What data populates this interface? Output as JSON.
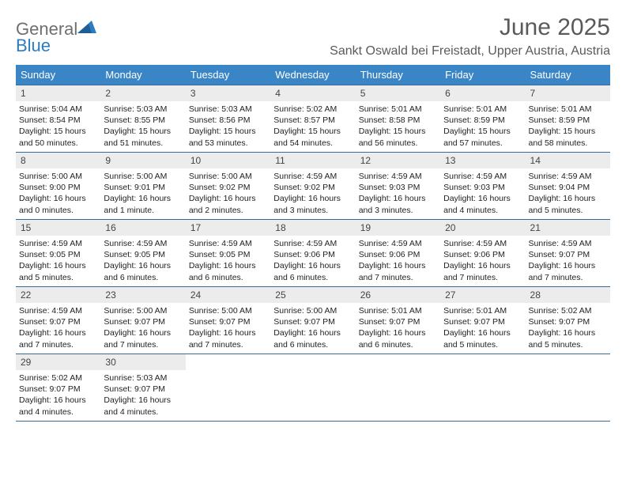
{
  "brand": {
    "part1": "General",
    "part2": "Blue"
  },
  "title": "June 2025",
  "location": "Sankt Oswald bei Freistadt, Upper Austria, Austria",
  "colors": {
    "header_bg": "#3a85c6",
    "header_text": "#ffffff",
    "daynum_bg": "#ececec",
    "week_border": "#3a6a9a",
    "title_color": "#5a5a5a",
    "logo_gray": "#6f6f6f",
    "logo_blue": "#2b7cc0"
  },
  "typography": {
    "title_fontsize": 30,
    "location_fontsize": 16,
    "dow_fontsize": 13,
    "daynum_fontsize": 12,
    "body_fontsize": 10.5
  },
  "dow": [
    "Sunday",
    "Monday",
    "Tuesday",
    "Wednesday",
    "Thursday",
    "Friday",
    "Saturday"
  ],
  "weeks": [
    [
      {
        "n": "1",
        "sr": "5:04 AM",
        "ss": "8:54 PM",
        "dl": "15 hours and 50 minutes."
      },
      {
        "n": "2",
        "sr": "5:03 AM",
        "ss": "8:55 PM",
        "dl": "15 hours and 51 minutes."
      },
      {
        "n": "3",
        "sr": "5:03 AM",
        "ss": "8:56 PM",
        "dl": "15 hours and 53 minutes."
      },
      {
        "n": "4",
        "sr": "5:02 AM",
        "ss": "8:57 PM",
        "dl": "15 hours and 54 minutes."
      },
      {
        "n": "5",
        "sr": "5:01 AM",
        "ss": "8:58 PM",
        "dl": "15 hours and 56 minutes."
      },
      {
        "n": "6",
        "sr": "5:01 AM",
        "ss": "8:59 PM",
        "dl": "15 hours and 57 minutes."
      },
      {
        "n": "7",
        "sr": "5:01 AM",
        "ss": "8:59 PM",
        "dl": "15 hours and 58 minutes."
      }
    ],
    [
      {
        "n": "8",
        "sr": "5:00 AM",
        "ss": "9:00 PM",
        "dl": "16 hours and 0 minutes."
      },
      {
        "n": "9",
        "sr": "5:00 AM",
        "ss": "9:01 PM",
        "dl": "16 hours and 1 minute."
      },
      {
        "n": "10",
        "sr": "5:00 AM",
        "ss": "9:02 PM",
        "dl": "16 hours and 2 minutes."
      },
      {
        "n": "11",
        "sr": "4:59 AM",
        "ss": "9:02 PM",
        "dl": "16 hours and 3 minutes."
      },
      {
        "n": "12",
        "sr": "4:59 AM",
        "ss": "9:03 PM",
        "dl": "16 hours and 3 minutes."
      },
      {
        "n": "13",
        "sr": "4:59 AM",
        "ss": "9:03 PM",
        "dl": "16 hours and 4 minutes."
      },
      {
        "n": "14",
        "sr": "4:59 AM",
        "ss": "9:04 PM",
        "dl": "16 hours and 5 minutes."
      }
    ],
    [
      {
        "n": "15",
        "sr": "4:59 AM",
        "ss": "9:05 PM",
        "dl": "16 hours and 5 minutes."
      },
      {
        "n": "16",
        "sr": "4:59 AM",
        "ss": "9:05 PM",
        "dl": "16 hours and 6 minutes."
      },
      {
        "n": "17",
        "sr": "4:59 AM",
        "ss": "9:05 PM",
        "dl": "16 hours and 6 minutes."
      },
      {
        "n": "18",
        "sr": "4:59 AM",
        "ss": "9:06 PM",
        "dl": "16 hours and 6 minutes."
      },
      {
        "n": "19",
        "sr": "4:59 AM",
        "ss": "9:06 PM",
        "dl": "16 hours and 7 minutes."
      },
      {
        "n": "20",
        "sr": "4:59 AM",
        "ss": "9:06 PM",
        "dl": "16 hours and 7 minutes."
      },
      {
        "n": "21",
        "sr": "4:59 AM",
        "ss": "9:07 PM",
        "dl": "16 hours and 7 minutes."
      }
    ],
    [
      {
        "n": "22",
        "sr": "4:59 AM",
        "ss": "9:07 PM",
        "dl": "16 hours and 7 minutes."
      },
      {
        "n": "23",
        "sr": "5:00 AM",
        "ss": "9:07 PM",
        "dl": "16 hours and 7 minutes."
      },
      {
        "n": "24",
        "sr": "5:00 AM",
        "ss": "9:07 PM",
        "dl": "16 hours and 7 minutes."
      },
      {
        "n": "25",
        "sr": "5:00 AM",
        "ss": "9:07 PM",
        "dl": "16 hours and 6 minutes."
      },
      {
        "n": "26",
        "sr": "5:01 AM",
        "ss": "9:07 PM",
        "dl": "16 hours and 6 minutes."
      },
      {
        "n": "27",
        "sr": "5:01 AM",
        "ss": "9:07 PM",
        "dl": "16 hours and 5 minutes."
      },
      {
        "n": "28",
        "sr": "5:02 AM",
        "ss": "9:07 PM",
        "dl": "16 hours and 5 minutes."
      }
    ],
    [
      {
        "n": "29",
        "sr": "5:02 AM",
        "ss": "9:07 PM",
        "dl": "16 hours and 4 minutes."
      },
      {
        "n": "30",
        "sr": "5:03 AM",
        "ss": "9:07 PM",
        "dl": "16 hours and 4 minutes."
      },
      {
        "empty": true
      },
      {
        "empty": true
      },
      {
        "empty": true
      },
      {
        "empty": true
      },
      {
        "empty": true
      }
    ]
  ],
  "labels": {
    "sunrise": "Sunrise: ",
    "sunset": "Sunset: ",
    "daylight": "Daylight: "
  }
}
